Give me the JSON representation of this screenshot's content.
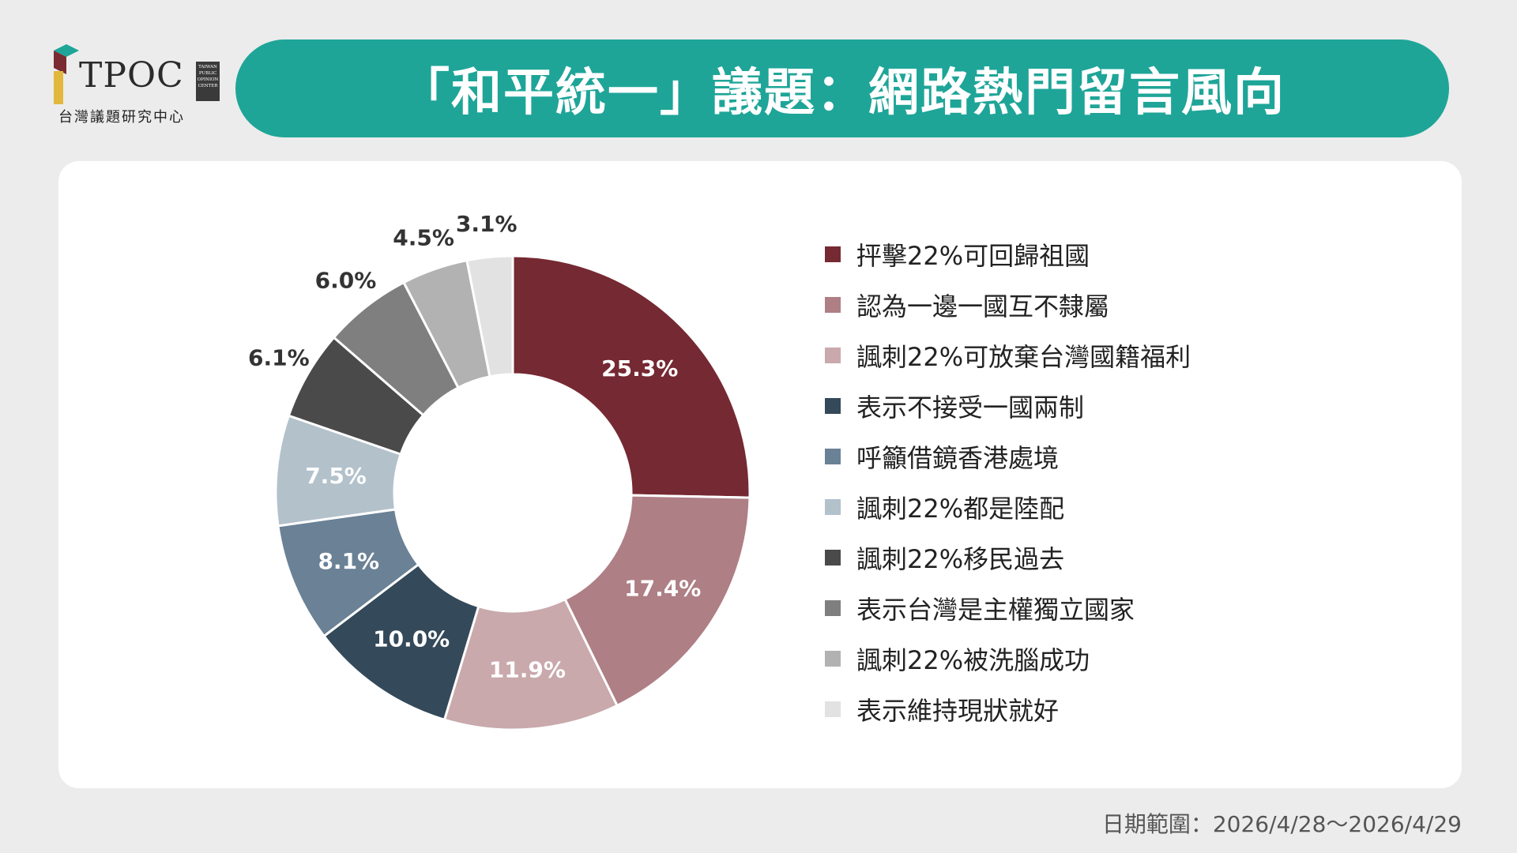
{
  "logo": {
    "name": "TPOC",
    "tag_lines": [
      "TAIWAN",
      "PUBLIC",
      "OPINION",
      "CENTER"
    ],
    "subtitle": "台灣議題研究中心"
  },
  "title": "「和平統一」議題：網路熱門留言風向",
  "date_note": "日期範圍：2026/4/28～2026/4/29",
  "colors": {
    "accent": "#1ea598",
    "background": "#ececec"
  },
  "chart_data": {
    "type": "pie",
    "style": "donut",
    "legend_placement": "right",
    "categories": [
      "抨擊22%可回歸祖國",
      "認為一邊一國互不隸屬",
      "諷刺22%可放棄台灣國籍福利",
      "表示不接受一國兩制",
      "呼籲借鏡香港處境",
      "諷刺22%都是陸配",
      "諷刺22%移民過去",
      "表示台灣是主權獨立國家",
      "諷刺22%被洗腦成功",
      "表示維持現狀就好"
    ],
    "values": [
      25.3,
      17.4,
      11.9,
      10.0,
      8.1,
      7.5,
      6.1,
      6.0,
      4.5,
      3.1
    ],
    "labels": [
      "25.3%",
      "17.4%",
      "11.9%",
      "10.0%",
      "8.1%",
      "7.5%",
      "6.1%",
      "6.0%",
      "4.5%",
      "3.1%"
    ],
    "colors": [
      "#752932",
      "#ae7f85",
      "#c9a9ac",
      "#344959",
      "#6a8196",
      "#b3c1cb",
      "#4a4a4a",
      "#7f7f7f",
      "#b2b2b2",
      "#e2e2e2"
    ]
  }
}
